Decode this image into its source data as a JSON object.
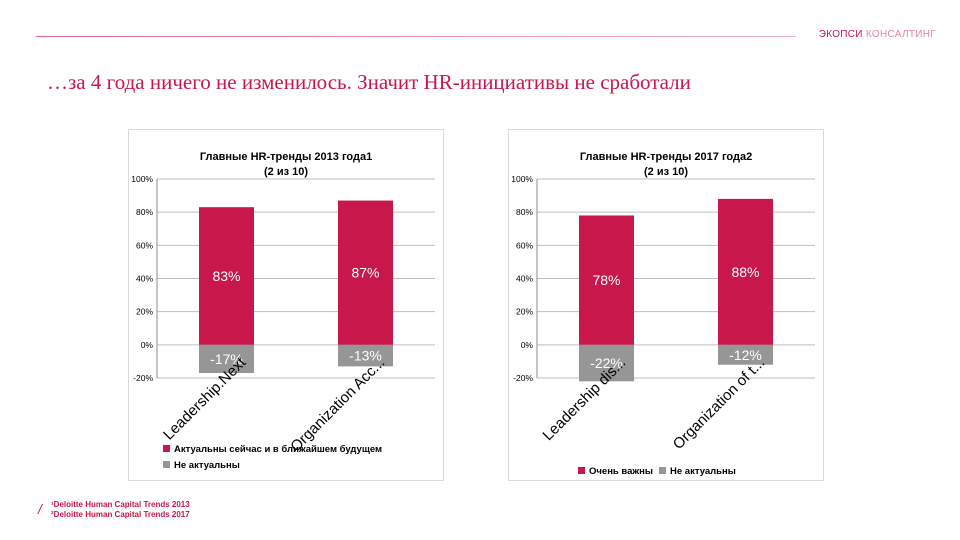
{
  "brand": {
    "part1": "ЭКОПСИ",
    "part2": "КОНСАЛТИНГ"
  },
  "headline": "…за 4 года ничего не изменилось. Значит HR-инициативы не сработали",
  "colors": {
    "accent": "#c8174a",
    "positive": "#c8174a",
    "negative": "#969696",
    "grid": "#bfbfbf"
  },
  "footnotes": [
    "¹Deloitte Human Capital Trends 2013",
    "²Deloitte Human Capital Trends 2017"
  ],
  "chart_data": [
    {
      "type": "bar",
      "title": "Главные HR-тренды  2013 года1",
      "subtitle": "(2 из 10)",
      "categories": [
        "Leadership.Next",
        "Organization Acc..."
      ],
      "series": [
        {
          "name": "Актуальны сейчас и в ближайшем будущем",
          "values": [
            83,
            87
          ],
          "labels": [
            "83%",
            "87%"
          ]
        },
        {
          "name": "Не актуальны",
          "values": [
            -17,
            -13
          ],
          "labels": [
            "-17%",
            "-13%"
          ]
        }
      ],
      "yticks": [
        "100%",
        "80%",
        "60%",
        "40%",
        "20%",
        "0%",
        "-20%"
      ],
      "ylim": [
        -20,
        100
      ],
      "grid": true,
      "legend": "bottom"
    },
    {
      "type": "bar",
      "title": "Главные HR-тренды  2017 года2",
      "subtitle": "(2 из 10)",
      "categories": [
        "Leadership dis...",
        "Organization of t..."
      ],
      "series": [
        {
          "name": "Очень важны",
          "values": [
            78,
            88
          ],
          "labels": [
            "78%",
            "88%"
          ]
        },
        {
          "name": "Не актуальны",
          "values": [
            -22,
            -12
          ],
          "labels": [
            "-22%",
            "-12%"
          ]
        }
      ],
      "yticks": [
        "100%",
        "80%",
        "60%",
        "40%",
        "20%",
        "0%",
        "-20%"
      ],
      "ylim": [
        -20,
        100
      ],
      "grid": true,
      "legend": "bottom"
    }
  ]
}
